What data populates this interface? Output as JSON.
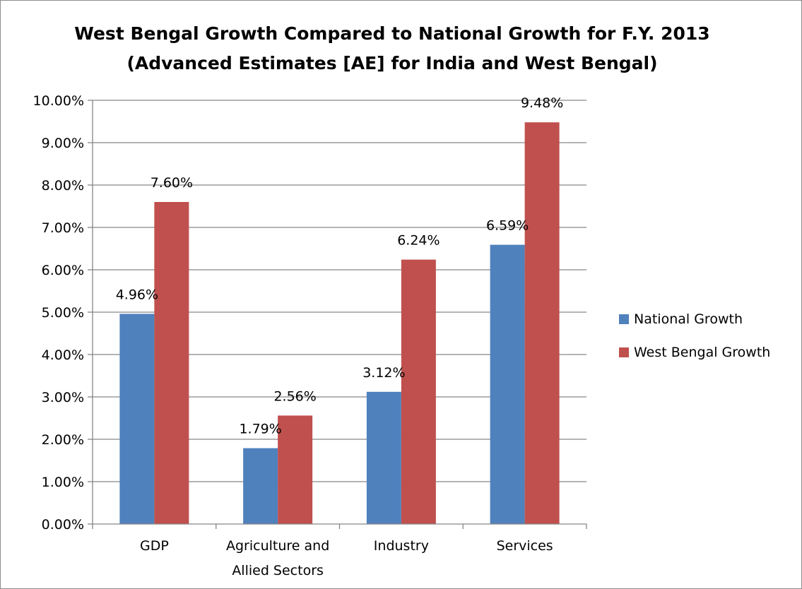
{
  "chart_data": {
    "type": "bar",
    "title": "West Bengal Growth Compared to National Growth for F.Y. 2013",
    "subtitle": "(Advanced Estimates [AE] for India and West Bengal)",
    "categories": [
      [
        "GDP"
      ],
      [
        "Agriculture and",
        "Allied Sectors"
      ],
      [
        "Industry"
      ],
      [
        "Services"
      ]
    ],
    "series": [
      {
        "name": "National Growth",
        "color": "#4f81bd",
        "values": [
          4.96,
          1.79,
          3.12,
          6.59
        ],
        "labels": [
          "4.96%",
          "1.79%",
          "3.12%",
          "6.59%"
        ]
      },
      {
        "name": "West Bengal Growth",
        "color": "#c0504d",
        "values": [
          7.6,
          2.56,
          6.24,
          9.48
        ],
        "labels": [
          "7.60%",
          "2.56%",
          "6.24%",
          "9.48%"
        ]
      }
    ],
    "ylim": [
      0,
      10
    ],
    "yticks": [
      {
        "value": 0,
        "label": "0.00%"
      },
      {
        "value": 1,
        "label": "1.00%"
      },
      {
        "value": 2,
        "label": "2.00%"
      },
      {
        "value": 3,
        "label": "3.00%"
      },
      {
        "value": 4,
        "label": "4.00%"
      },
      {
        "value": 5,
        "label": "5.00%"
      },
      {
        "value": 6,
        "label": "6.00%"
      },
      {
        "value": 7,
        "label": "7.00%"
      },
      {
        "value": 8,
        "label": "8.00%"
      },
      {
        "value": 9,
        "label": "9.00%"
      },
      {
        "value": 10,
        "label": "10.00%"
      }
    ],
    "xlabel": "",
    "ylabel": "",
    "grid": true,
    "legend_position": "right",
    "colors": {
      "gridline": "#868686",
      "axis": "#868686",
      "frame": "#8c8c8c"
    }
  }
}
